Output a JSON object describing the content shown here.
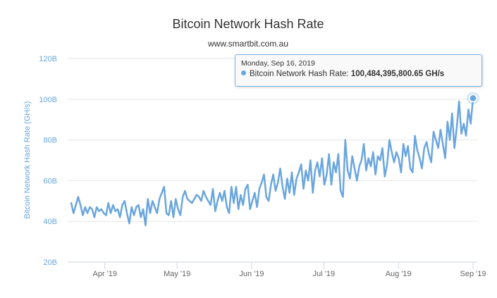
{
  "chart_data": {
    "type": "line",
    "title": "Bitcoin Network Hash Rate",
    "subtitle": "www.smartbit.com.au",
    "xlabel": "",
    "ylabel": "Bitcoin Network Hash Rate (GH/s)",
    "ylim": [
      20,
      120
    ],
    "y_ticks": [
      "20B",
      "40B",
      "60B",
      "80B",
      "100B",
      "120B"
    ],
    "x_ticks": [
      "Apr '19",
      "May '19",
      "Jun '19",
      "Jul '19",
      "Aug '19",
      "Sep '19"
    ],
    "x_range_days": [
      0,
      167
    ],
    "x_tick_days": [
      14,
      44,
      75,
      105,
      136,
      167
    ],
    "series": [
      {
        "name": "Bitcoin Network Hash Rate",
        "color": "#6aa6de",
        "unit": "billion GH/s",
        "values": [
          49,
          44,
          48,
          52,
          48,
          43,
          47,
          44,
          47,
          46,
          42,
          47,
          45,
          46,
          44,
          43,
          49,
          44,
          48,
          45,
          46,
          42,
          48,
          50,
          44,
          39,
          47,
          43,
          47,
          48,
          42,
          46,
          38,
          51,
          44,
          50,
          47,
          44,
          51,
          54,
          57,
          44,
          43,
          50,
          42,
          51,
          46,
          43,
          52,
          55,
          51,
          50,
          49,
          51,
          53,
          52,
          50,
          55,
          52,
          50,
          48,
          56,
          45,
          50,
          54,
          50,
          55,
          47,
          44,
          57,
          49,
          57,
          46,
          53,
          48,
          56,
          58,
          46,
          50,
          54,
          47,
          56,
          59,
          63,
          52,
          50,
          58,
          63,
          55,
          59,
          66,
          57,
          51,
          61,
          54,
          64,
          53,
          61,
          64,
          68,
          56,
          65,
          60,
          70,
          54,
          65,
          69,
          62,
          71,
          58,
          63,
          73,
          58,
          69,
          64,
          73,
          55,
          52,
          80,
          65,
          61,
          72,
          66,
          60,
          67,
          70,
          78,
          65,
          71,
          67,
          74,
          63,
          72,
          70,
          76,
          62,
          68,
          80,
          74,
          69,
          74,
          71,
          64,
          78,
          72,
          77,
          66,
          64,
          82,
          75,
          71,
          66,
          76,
          79,
          73,
          69,
          84,
          80,
          76,
          85,
          78,
          71,
          89,
          80,
          93,
          76,
          86,
          99,
          83,
          88,
          82,
          95,
          88,
          100.48
        ]
      }
    ],
    "last_point_day": 167,
    "tooltip": {
      "date": "Monday, Sep 16, 2019",
      "label": "Bitcoin Network Hash Rate:",
      "value": "100,484,395,800.65 GH/s"
    }
  }
}
